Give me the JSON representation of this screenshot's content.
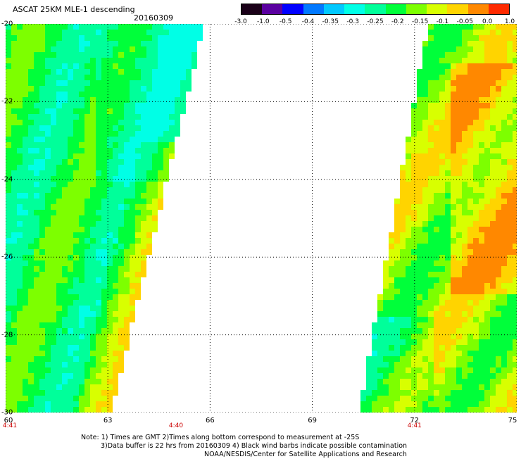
{
  "header": {
    "title": "ASCAT 25KM MLE-1 descending",
    "date": "20160309"
  },
  "colorbar": {
    "labels": [
      "-3.0",
      "-1.0",
      "-0.5",
      "-0.4",
      "-0.35",
      "-0.3",
      "-0.25",
      "-0.2",
      "-0.15",
      "-0.1",
      "-0.05",
      "0.0",
      "1.0"
    ],
    "colors": [
      "#1a0018",
      "#5a00a0",
      "#0000ff",
      "#0078ff",
      "#00c8ff",
      "#00ffe6",
      "#00ff9a",
      "#00ff3a",
      "#7dff00",
      "#d8ff00",
      "#ffd400",
      "#ff8800",
      "#ff2a00"
    ]
  },
  "map": {
    "lat_labels": [
      "-20",
      "-22",
      "-24",
      "-26",
      "-28",
      "-30"
    ],
    "lon_labels": [
      "60",
      "63",
      "66",
      "69",
      "72",
      "75"
    ],
    "lat_range": [
      -30,
      -20
    ],
    "lon_range": [
      60,
      75
    ],
    "grid": true,
    "times": [
      {
        "label": "4:41",
        "lon": 60
      },
      {
        "label": "4:40",
        "lon": 65
      },
      {
        "label": "4:41",
        "lon": 72
      }
    ],
    "swaths": [
      {
        "name": "west",
        "lon_min": 60,
        "edge_lon_north": 65.9,
        "edge_lon_south": 63.2
      },
      {
        "name": "east",
        "lon_max": 75,
        "edge_lon_north": 72.3,
        "edge_lon_south": 70.3
      }
    ]
  },
  "notes": {
    "line1": "Note: 1) Times are GMT 2)Times along bottom correspond to measurement at -25S",
    "line2": "3)Data buffer is 22 hrs from 20160309 4) Black wind barbs indicate possible contamination",
    "line3": "NOAA/NESDIS/Center for Satellite Applications and Research"
  }
}
